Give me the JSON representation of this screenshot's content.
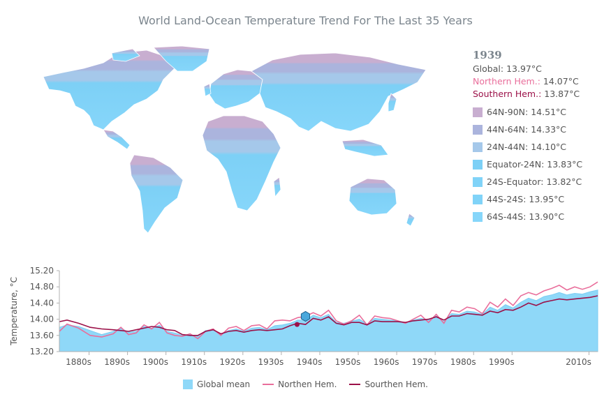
{
  "title": "World Land-Ocean Temperature Trend For The Last 35 Years",
  "info": {
    "year": "1939",
    "global_label": "Global:",
    "global_value": "13.97°C",
    "north_label": "Northern Hem.:",
    "north_value": "14.07°C",
    "south_label": "Southern Hem.:",
    "south_value": "13.87°C",
    "bands": [
      {
        "label": "64N-90N:",
        "value": "14.51°C",
        "color": "#c8aed0"
      },
      {
        "label": "44N-64N:",
        "value": "14.33°C",
        "color": "#abb4dd"
      },
      {
        "label": "24N-44N:",
        "value": "14.10°C",
        "color": "#a5c8ea"
      },
      {
        "label": "Equator-24N:",
        "value": "13.83°C",
        "color": "#7dd0f6"
      },
      {
        "label": "24S-Equator:",
        "value": "13.82°C",
        "color": "#80d3f8"
      },
      {
        "label": "44S-24S:",
        "value": "13.95°C",
        "color": "#80d3f8"
      },
      {
        "label": "64S-44S:",
        "value": "13.90°C",
        "color": "#86d6fa"
      }
    ]
  },
  "legend": {
    "global_mean": "Global mean",
    "north": "Northen Hem.",
    "south": "Sourthen Hem."
  },
  "colors": {
    "area": "#8fd8f8",
    "north": "#e96e9b",
    "south": "#9b1048",
    "axis_text": "#545454"
  },
  "chart_data": {
    "type": "area",
    "ylabel": "Temperature, °C",
    "ylim": [
      13.2,
      15.2
    ],
    "yticks": [
      "13.20",
      "13.60",
      "14.00",
      "14.40",
      "14.80",
      "15.20"
    ],
    "ytick_values": [
      13.2,
      13.6,
      14.0,
      14.4,
      14.8,
      15.2
    ],
    "xlim": [
      1875,
      2015
    ],
    "xtick_labels": [
      "1880s",
      "1890s",
      "1900s",
      "1910s",
      "1920s",
      "1930s",
      "1940s",
      "1950s",
      "1960s",
      "1970s",
      "1980s",
      "1990s",
      "2010s"
    ],
    "xtick_values": [
      1880,
      1890,
      1900,
      1910,
      1920,
      1930,
      1940,
      1950,
      1960,
      1970,
      1980,
      1990,
      2010
    ],
    "highlight_year": 1939,
    "x": [
      1875,
      1877,
      1880,
      1883,
      1886,
      1889,
      1891,
      1893,
      1895,
      1897,
      1899,
      1901,
      1903,
      1905,
      1907,
      1909,
      1911,
      1913,
      1915,
      1917,
      1919,
      1921,
      1923,
      1925,
      1927,
      1929,
      1931,
      1933,
      1935,
      1937,
      1939,
      1941,
      1943,
      1945,
      1947,
      1949,
      1951,
      1953,
      1955,
      1957,
      1959,
      1961,
      1963,
      1965,
      1967,
      1969,
      1971,
      1973,
      1975,
      1977,
      1979,
      1981,
      1983,
      1985,
      1987,
      1989,
      1991,
      1993,
      1995,
      1997,
      1999,
      2001,
      2003,
      2005,
      2007,
      2009,
      2011,
      2013,
      2015
    ],
    "series": [
      {
        "name": "Global mean",
        "values": [
          13.8,
          13.86,
          13.82,
          13.72,
          13.62,
          13.7,
          13.78,
          13.68,
          13.7,
          13.82,
          13.78,
          13.85,
          13.7,
          13.66,
          13.6,
          13.62,
          13.58,
          13.72,
          13.75,
          13.62,
          13.72,
          13.76,
          13.7,
          13.78,
          13.8,
          13.74,
          13.84,
          13.86,
          13.9,
          13.98,
          13.97,
          14.1,
          14.04,
          14.12,
          13.92,
          13.9,
          13.95,
          14.0,
          13.88,
          14.02,
          14.0,
          13.98,
          13.96,
          13.92,
          13.98,
          14.02,
          13.98,
          14.08,
          13.94,
          14.14,
          14.12,
          14.2,
          14.18,
          14.12,
          14.3,
          14.22,
          14.36,
          14.28,
          14.42,
          14.52,
          14.46,
          14.56,
          14.6,
          14.66,
          14.6,
          14.64,
          14.62,
          14.68,
          14.72
        ]
      },
      {
        "name": "Northen Hem.",
        "values": [
          13.7,
          13.88,
          13.78,
          13.6,
          13.56,
          13.64,
          13.8,
          13.62,
          13.66,
          13.86,
          13.76,
          13.92,
          13.66,
          13.6,
          13.58,
          13.64,
          13.52,
          13.7,
          13.76,
          13.6,
          13.78,
          13.82,
          13.72,
          13.84,
          13.86,
          13.76,
          13.96,
          13.98,
          13.96,
          14.04,
          14.07,
          14.16,
          14.08,
          14.22,
          13.96,
          13.88,
          13.96,
          14.1,
          13.86,
          14.08,
          14.04,
          14.02,
          13.96,
          13.9,
          14.0,
          14.1,
          13.92,
          14.12,
          13.9,
          14.22,
          14.18,
          14.3,
          14.26,
          14.14,
          14.42,
          14.3,
          14.5,
          14.34,
          14.58,
          14.66,
          14.6,
          14.7,
          14.76,
          14.84,
          14.72,
          14.8,
          14.74,
          14.8,
          14.92
        ]
      },
      {
        "name": "Sourthen Hem.",
        "values": [
          13.94,
          13.98,
          13.9,
          13.8,
          13.76,
          13.74,
          13.72,
          13.7,
          13.74,
          13.78,
          13.82,
          13.8,
          13.74,
          13.72,
          13.62,
          13.6,
          13.6,
          13.7,
          13.74,
          13.64,
          13.7,
          13.72,
          13.68,
          13.72,
          13.74,
          13.72,
          13.74,
          13.76,
          13.84,
          13.9,
          13.87,
          14.02,
          13.98,
          14.06,
          13.9,
          13.86,
          13.92,
          13.92,
          13.86,
          13.96,
          13.94,
          13.94,
          13.94,
          13.92,
          13.96,
          13.98,
          14.0,
          14.06,
          13.98,
          14.08,
          14.08,
          14.14,
          14.12,
          14.1,
          14.2,
          14.16,
          14.24,
          14.22,
          14.3,
          14.4,
          14.34,
          14.42,
          14.46,
          14.5,
          14.48,
          14.5,
          14.52,
          14.54,
          14.58
        ]
      }
    ]
  }
}
